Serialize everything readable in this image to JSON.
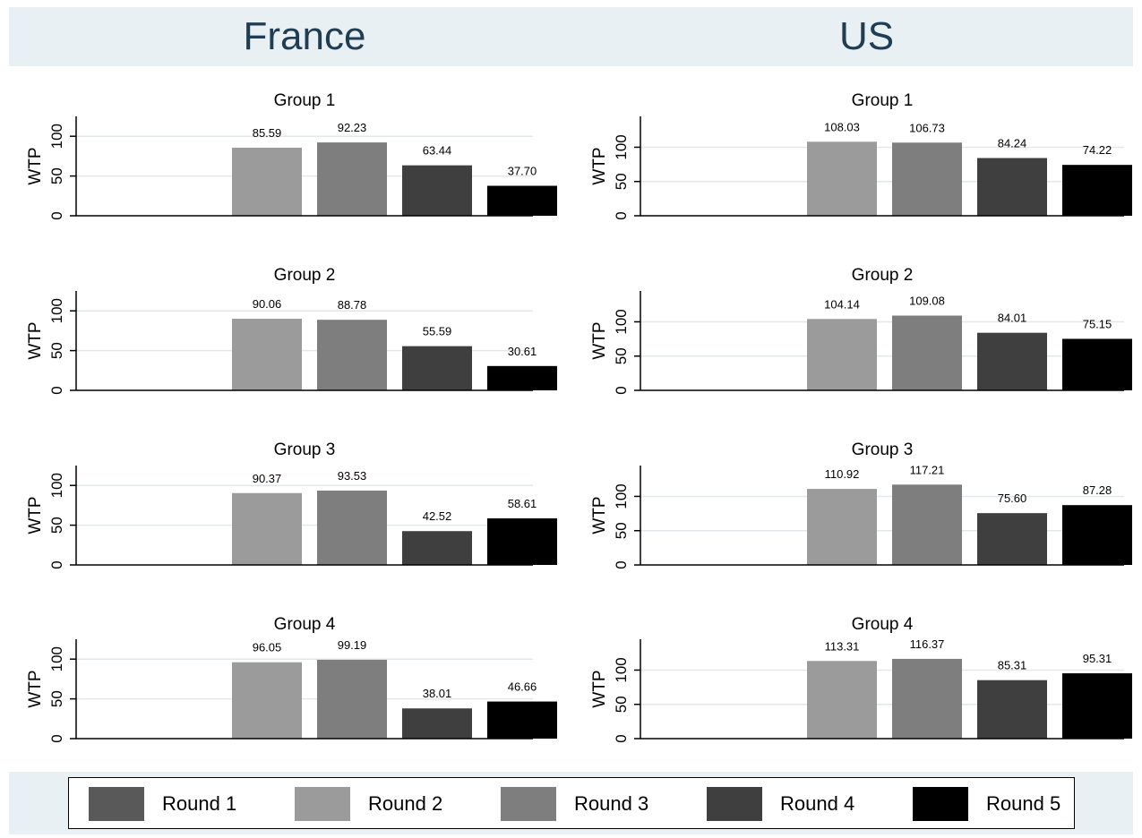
{
  "figure": {
    "columns": [
      "France",
      "US"
    ]
  },
  "chart_data": [
    {
      "type": "bar",
      "title": "Group 1",
      "country": "France",
      "ylabel": "WTP",
      "ylim": [
        0,
        125
      ],
      "yticks": [
        "0",
        "50",
        "100"
      ],
      "categories": [
        "Round 1",
        "Round 2",
        "Round 3",
        "Round 4",
        "Round 5"
      ],
      "values": [
        null,
        85.59,
        92.23,
        63.44,
        37.7
      ],
      "labels": [
        "",
        "85.59",
        "92.23",
        "63.44",
        "37.70"
      ]
    },
    {
      "type": "bar",
      "title": "Group 2",
      "country": "France",
      "ylabel": "WTP",
      "ylim": [
        0,
        125
      ],
      "yticks": [
        "0",
        "50",
        "100"
      ],
      "categories": [
        "Round 1",
        "Round 2",
        "Round 3",
        "Round 4",
        "Round 5"
      ],
      "values": [
        null,
        90.06,
        88.78,
        55.59,
        30.61
      ],
      "labels": [
        "",
        "90.06",
        "88.78",
        "55.59",
        "30.61"
      ]
    },
    {
      "type": "bar",
      "title": "Group 3",
      "country": "France",
      "ylabel": "WTP",
      "ylim": [
        0,
        125
      ],
      "yticks": [
        "0",
        "50",
        "100"
      ],
      "categories": [
        "Round 1",
        "Round 2",
        "Round 3",
        "Round 4",
        "Round 5"
      ],
      "values": [
        null,
        90.37,
        93.53,
        42.52,
        58.61
      ],
      "labels": [
        "",
        "90.37",
        "93.53",
        "42.52",
        "58.61"
      ]
    },
    {
      "type": "bar",
      "title": "Group 4",
      "country": "France",
      "ylabel": "WTP",
      "ylim": [
        0,
        125
      ],
      "yticks": [
        "0",
        "50",
        "100"
      ],
      "categories": [
        "Round 1",
        "Round 2",
        "Round 3",
        "Round 4",
        "Round 5"
      ],
      "values": [
        null,
        96.05,
        99.19,
        38.01,
        46.66
      ],
      "labels": [
        "",
        "96.05",
        "99.19",
        "38.01",
        "46.66"
      ]
    },
    {
      "type": "bar",
      "title": "Group 1",
      "country": "US",
      "ylabel": "WTP",
      "ylim": [
        0,
        145
      ],
      "yticks": [
        "0",
        "50",
        "100"
      ],
      "categories": [
        "Round 1",
        "Round 2",
        "Round 3",
        "Round 4",
        "Round 5"
      ],
      "values": [
        null,
        108.03,
        106.73,
        84.24,
        74.22
      ],
      "labels": [
        "",
        "108.03",
        "106.73",
        "84.24",
        "74.22"
      ]
    },
    {
      "type": "bar",
      "title": "Group 2",
      "country": "US",
      "ylabel": "WTP",
      "ylim": [
        0,
        145
      ],
      "yticks": [
        "0",
        "50",
        "100"
      ],
      "categories": [
        "Round 1",
        "Round 2",
        "Round 3",
        "Round 4",
        "Round 5"
      ],
      "values": [
        null,
        104.14,
        109.08,
        84.01,
        75.15
      ],
      "labels": [
        "",
        "104.14",
        "109.08",
        "84.01",
        "75.15"
      ]
    },
    {
      "type": "bar",
      "title": "Group 3",
      "country": "US",
      "ylabel": "WTP",
      "ylim": [
        0,
        145
      ],
      "yticks": [
        "0",
        "50",
        "100"
      ],
      "categories": [
        "Round 1",
        "Round 2",
        "Round 3",
        "Round 4",
        "Round 5"
      ],
      "values": [
        null,
        110.92,
        117.21,
        75.6,
        87.28
      ],
      "labels": [
        "",
        "110.92",
        "117.21",
        "75.60",
        "87.28"
      ]
    },
    {
      "type": "bar",
      "title": "Group 4",
      "country": "US",
      "ylabel": "WTP",
      "ylim": [
        0,
        145
      ],
      "yticks": [
        "0",
        "50",
        "100"
      ],
      "categories": [
        "Round 1",
        "Round 2",
        "Round 3",
        "Round 4",
        "Round 5"
      ],
      "values": [
        null,
        113.31,
        116.37,
        85.31,
        95.31
      ],
      "labels": [
        "",
        "113.31",
        "116.37",
        "85.31",
        "95.31"
      ]
    }
  ],
  "legend": {
    "placement": "bottom",
    "items": [
      {
        "label": "Round 1",
        "color": "#595959"
      },
      {
        "label": "Round 2",
        "color": "#9b9b9b"
      },
      {
        "label": "Round 3",
        "color": "#7e7e7e"
      },
      {
        "label": "Round 4",
        "color": "#3f3f3f"
      },
      {
        "label": "Round 5",
        "color": "#000000"
      }
    ]
  },
  "colors": {
    "header_background": "#e9f0f3",
    "header_text": "#1f3d53",
    "gridline": "#e2e7ea"
  }
}
